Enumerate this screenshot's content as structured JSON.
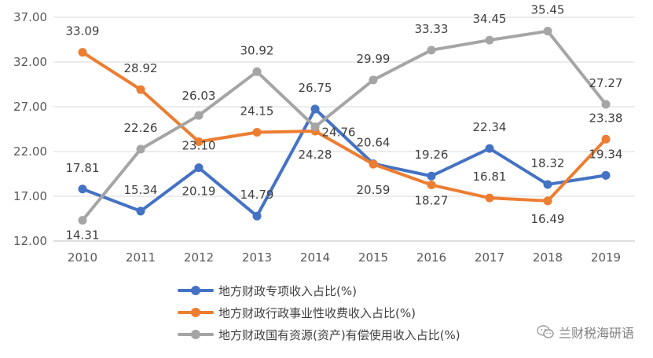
{
  "chart_data": {
    "type": "line",
    "categories": [
      "2010",
      "2011",
      "2012",
      "2013",
      "2014",
      "2015",
      "2016",
      "2017",
      "2018",
      "2019"
    ],
    "y_ticks": [
      "12.00",
      "17.00",
      "22.00",
      "27.00",
      "32.00",
      "37.00"
    ],
    "ylim": [
      12,
      37
    ],
    "grid": true,
    "legend_position": "bottom",
    "series": [
      {
        "name": "地方财政专项收入占比(%)",
        "color": "#4472c4",
        "values": [
          17.81,
          15.34,
          20.19,
          14.79,
          26.75,
          20.64,
          19.26,
          22.34,
          18.32,
          19.34
        ],
        "labels": [
          "17.81",
          "15.34",
          "20.19",
          "14.79",
          "26.75",
          "20.64",
          "19.26",
          "22.34",
          "18.32",
          "19.34"
        ]
      },
      {
        "name": "地方财政行政事业性收费收入占比(%)",
        "color": "#ed7d31",
        "values": [
          33.09,
          28.92,
          23.1,
          24.15,
          24.28,
          20.59,
          18.27,
          16.81,
          16.49,
          23.38
        ],
        "labels": [
          "33.09",
          "28.92",
          "23.10",
          "24.15",
          "24.28",
          "20.59",
          "18.27",
          "16.81",
          "16.49",
          "23.38"
        ]
      },
      {
        "name": "地方财政国有资源(资产)有偿使用收入占比(%)",
        "color": "#a5a5a5",
        "values": [
          14.31,
          22.26,
          26.03,
          30.92,
          24.76,
          29.99,
          33.33,
          34.45,
          35.45,
          27.27
        ],
        "labels": [
          "14.31",
          "22.26",
          "26.03",
          "30.92",
          "24.76",
          "29.99",
          "33.33",
          "34.45",
          "35.45",
          "27.27"
        ]
      }
    ]
  },
  "watermark": {
    "text": "兰财税海研语",
    "icon": "wechat-icon"
  }
}
